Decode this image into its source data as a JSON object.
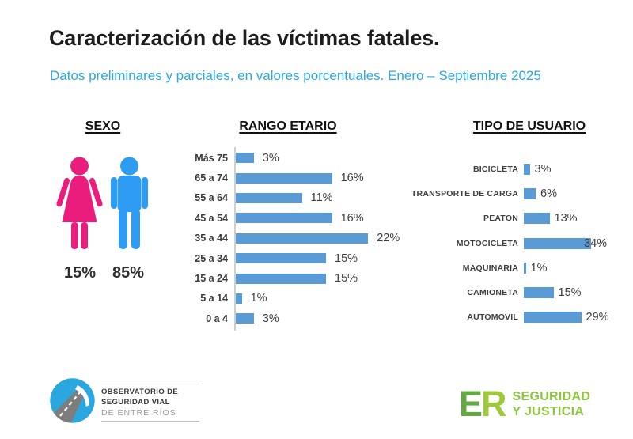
{
  "title": "Caracterización de las víctimas fatales.",
  "subtitle": "Datos preliminares y parciales, en valores porcentuales. Enero – Septiembre 2025",
  "colors": {
    "subtitle_blue": "#2BA9E1",
    "bar_blue": "#5B9BD5",
    "female_pink": "#EB1D7C",
    "male_blue": "#2E9CF3",
    "title_dark": "#1D1D1D",
    "logo_circle_blue": "#2AA7DF",
    "er_green_dark": "#64A844",
    "er_green_light": "#9EC93B",
    "er_green_text": "#8DC63F"
  },
  "chart_data": [
    {
      "type": "pictogram",
      "title": "SEXO",
      "categories": [
        "femenino",
        "masculino"
      ],
      "values": [
        15,
        85
      ],
      "unit": "%",
      "labels": [
        "15%",
        "85%"
      ]
    },
    {
      "type": "bar",
      "orientation": "horizontal",
      "title": "RANGO ETARIO",
      "categories": [
        "Más 75",
        "65 a 74",
        "55 a 64",
        "45 a 54",
        "35 a 44",
        "25 a 34",
        "15 a 24",
        "5 a 14",
        "0 a 4"
      ],
      "values": [
        3,
        16,
        11,
        16,
        22,
        15,
        15,
        1,
        3
      ],
      "unit": "%",
      "xlim": [
        0,
        25
      ],
      "grid": false,
      "legend": false
    },
    {
      "type": "bar",
      "orientation": "horizontal",
      "title": "TIPO DE USUARIO",
      "categories": [
        "BICICLETA",
        "TRANSPORTE DE CARGA",
        "PEATON",
        "MOTOCICLETA",
        "MAQUINARIA",
        "CAMIONETA",
        "AUTOMOVIL"
      ],
      "values": [
        3,
        6,
        13,
        34,
        1,
        15,
        29
      ],
      "unit": "%",
      "xlim": [
        0,
        35
      ],
      "grid": false,
      "legend": false
    }
  ],
  "footer": {
    "observatorio": {
      "line1": "OBSERVATORIO DE",
      "line2": "SEGURIDAD VIAL",
      "line3": "DE ENTRE RÍOS"
    },
    "gov": {
      "monogram_e": "E",
      "monogram_r": "R",
      "line1": "SEGURIDAD",
      "line2": "Y JUSTICIA"
    }
  }
}
